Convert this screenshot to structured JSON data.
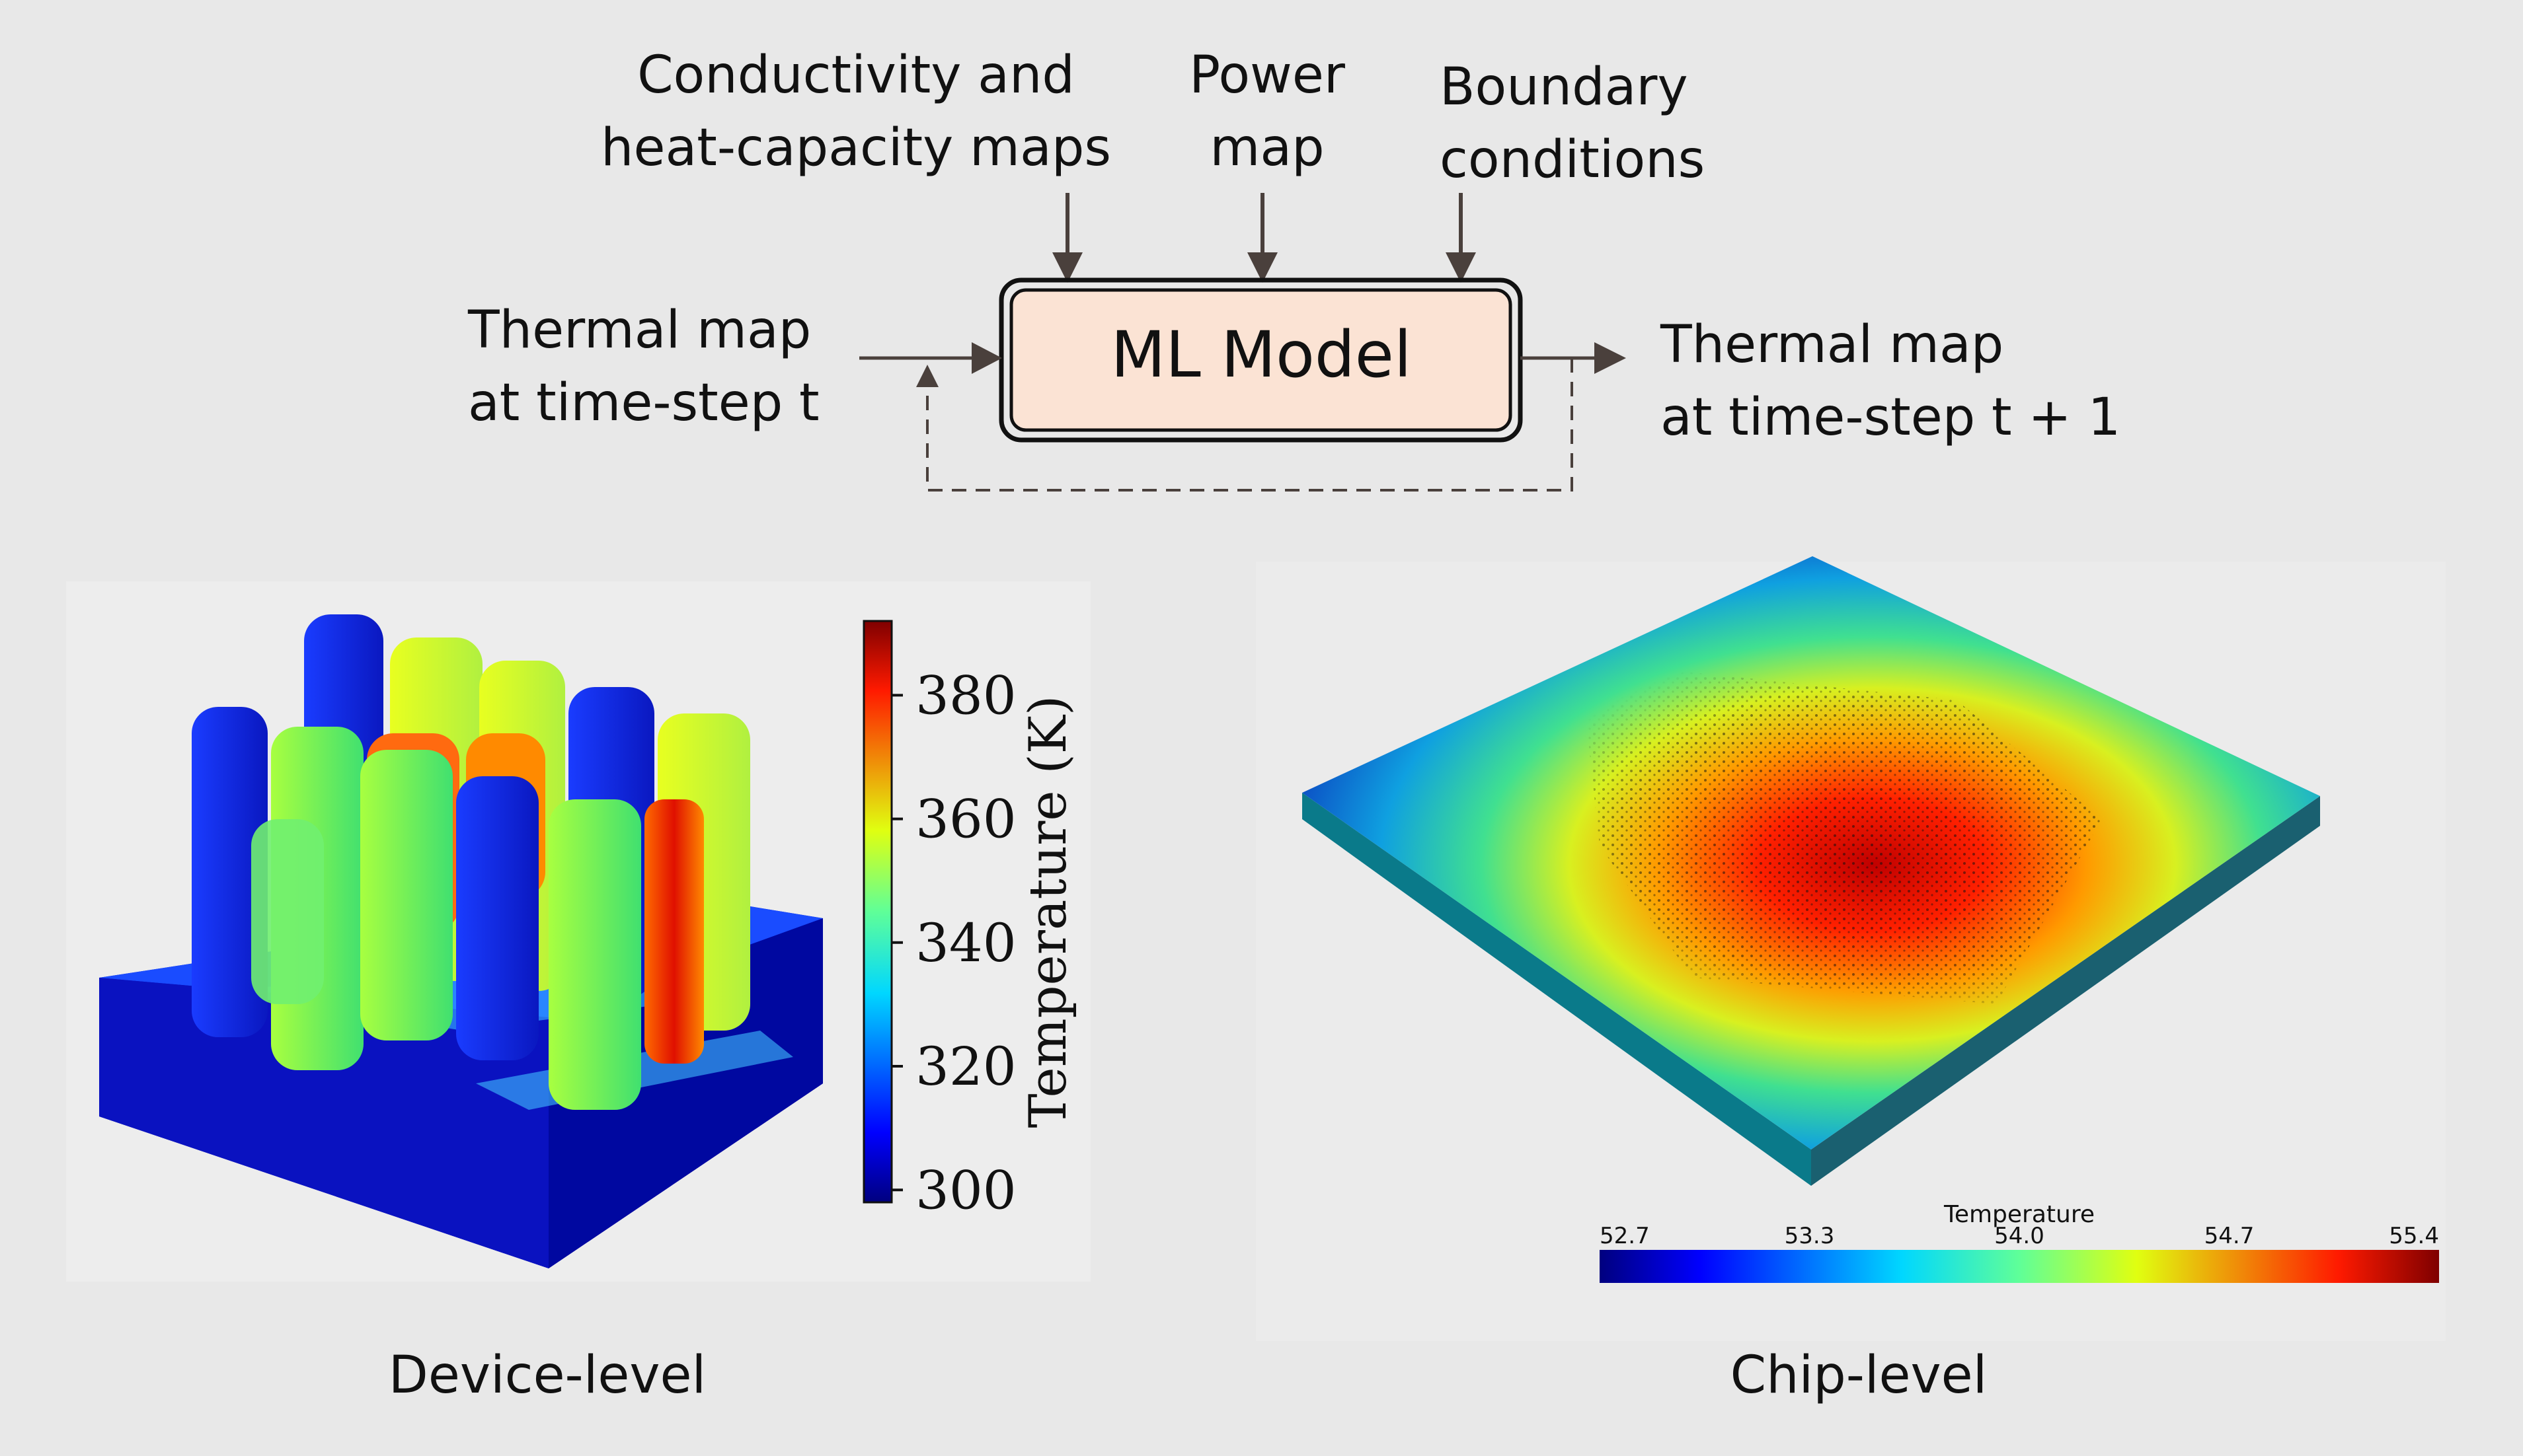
{
  "diagram": {
    "inputs": {
      "conductivity": [
        "Conductivity and",
        "heat-capacity maps"
      ],
      "power": [
        "Power",
        "map"
      ],
      "boundary": [
        "Boundary",
        "conditions"
      ]
    },
    "thermal_in": [
      "Thermal map",
      "at time-step t"
    ],
    "thermal_out": [
      "Thermal map",
      "at time-step t + 1"
    ],
    "model_label": "ML Model"
  },
  "device": {
    "caption": "Device-level",
    "colorbar_label": "Temperature (K)",
    "ticks": [
      "380",
      "360",
      "340",
      "320",
      "300"
    ],
    "tick_values": [
      380,
      360,
      340,
      320,
      300
    ],
    "range": [
      298,
      392
    ]
  },
  "chip": {
    "caption": "Chip-level",
    "colorbar_title": "Temperature",
    "ticks": [
      "52.7",
      "53.3",
      "54.0",
      "54.7",
      "55.4"
    ]
  },
  "colors": {
    "model_fill": "#fbe3d4",
    "arrow": "#4a403c",
    "background": "#e8e8e8"
  }
}
